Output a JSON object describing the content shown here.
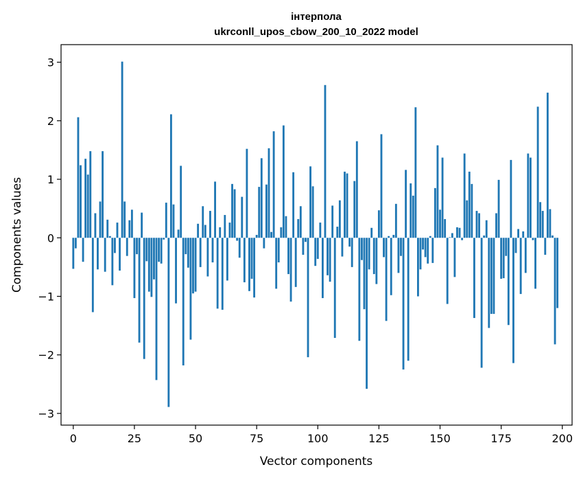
{
  "chart_data": {
    "type": "bar",
    "title": "інтерпола",
    "subtitle": "ukrconll_upos_cbow_200_10_2022 model",
    "xlabel": "Vector components",
    "ylabel": "Components values",
    "xlim": [
      -5,
      204
    ],
    "ylim": [
      -3.2,
      3.3
    ],
    "xticks": [
      0,
      25,
      50,
      75,
      100,
      125,
      150,
      175,
      200
    ],
    "yticks": [
      3,
      2,
      1,
      0,
      -1,
      -2,
      -3
    ],
    "ytick_labels": [
      "3",
      "2",
      "1",
      "0",
      "−1",
      "−2",
      "−3"
    ],
    "bar_color": "#1f77b4",
    "values": [
      -0.53,
      -0.18,
      2.06,
      1.24,
      -0.41,
      1.35,
      1.08,
      1.48,
      -1.27,
      0.42,
      -0.54,
      0.62,
      1.48,
      -0.58,
      0.31,
      0.03,
      -0.81,
      -0.26,
      0.26,
      -0.56,
      3.01,
      0.62,
      -0.31,
      0.3,
      0.48,
      -1.03,
      -0.28,
      -1.79,
      0.43,
      -2.07,
      -0.4,
      -0.92,
      -1.01,
      -0.71,
      -2.43,
      -0.41,
      -0.44,
      -0.03,
      0.6,
      -2.89,
      2.11,
      0.57,
      -1.12,
      0.14,
      1.23,
      -2.18,
      -0.28,
      -0.51,
      -1.74,
      -0.95,
      -0.92,
      0.24,
      -0.5,
      0.54,
      0.22,
      -0.66,
      0.46,
      -0.42,
      0.96,
      -1.21,
      0.18,
      -1.23,
      0.39,
      -0.73,
      0.26,
      0.92,
      0.83,
      -0.05,
      -0.34,
      0.7,
      -0.76,
      1.52,
      -0.91,
      -0.7,
      -1.02,
      0.05,
      0.87,
      1.36,
      -0.18,
      0.91,
      1.53,
      0.1,
      1.82,
      -0.87,
      -0.42,
      0.18,
      1.92,
      0.37,
      -0.62,
      -1.09,
      1.12,
      -0.84,
      0.32,
      0.54,
      -0.29,
      -0.07,
      -2.04,
      1.22,
      0.88,
      -0.48,
      -0.36,
      0.26,
      -1.03,
      2.61,
      -0.64,
      -0.75,
      0.55,
      -1.71,
      0.19,
      0.64,
      -0.32,
      1.13,
      1.1,
      -0.15,
      -0.5,
      0.97,
      1.65,
      -1.76,
      -0.38,
      -1.22,
      -2.58,
      -0.54,
      0.17,
      -0.62,
      -0.79,
      0.47,
      1.77,
      -0.33,
      -1.42,
      0.03,
      -0.98,
      0.05,
      0.58,
      -0.6,
      -0.31,
      -2.25,
      1.16,
      -2.1,
      0.93,
      0.72,
      2.23,
      -1.0,
      -0.54,
      -0.2,
      -0.33,
      -0.44,
      0.03,
      -0.43,
      0.85,
      1.58,
      0.48,
      1.37,
      0.32,
      -1.13,
      0.01,
      0.08,
      -0.67,
      0.18,
      0.17,
      -0.04,
      1.44,
      0.64,
      1.13,
      0.92,
      -1.37,
      0.46,
      0.42,
      -2.22,
      0.04,
      0.3,
      -1.54,
      -1.3,
      -1.3,
      0.42,
      0.99,
      -0.7,
      -0.69,
      -0.31,
      -1.49,
      1.33,
      -2.14,
      -0.26,
      0.15,
      -0.96,
      0.11,
      -0.6,
      1.44,
      1.37,
      -0.04,
      -0.87,
      2.24,
      0.61,
      0.46,
      -0.29,
      2.48,
      0.49,
      0.04,
      -1.82,
      -1.2
    ]
  }
}
